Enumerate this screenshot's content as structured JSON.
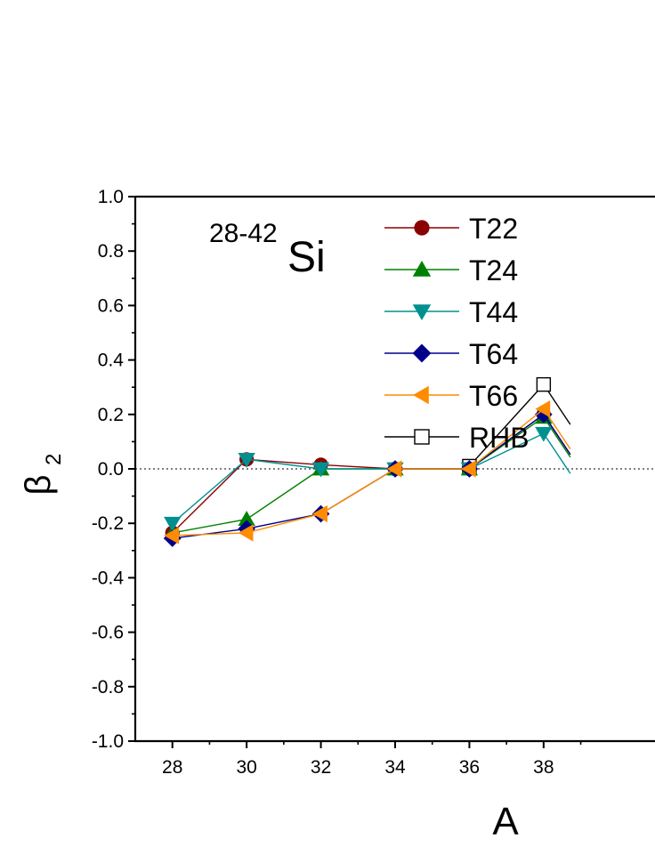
{
  "chart_data": {
    "type": "line",
    "x": [
      28,
      30,
      32,
      34,
      36,
      38
    ],
    "xlabel": "A",
    "ylabel": "β",
    "ylabel_subscript": "2",
    "xlim": [
      27,
      41
    ],
    "ylim": [
      -1.0,
      1.0
    ],
    "xticks": [
      "28",
      "30",
      "32",
      "34",
      "36",
      "38"
    ],
    "yticks": [
      "-1.0",
      "-0.8",
      "-0.6",
      "-0.4",
      "-0.2",
      "0.0",
      "0.2",
      "0.4",
      "0.6",
      "0.8",
      "1.0"
    ],
    "zero_line": "dotted",
    "grid": false,
    "annotation": {
      "superscript": "28-42",
      "text": "Si"
    },
    "legend_position": "top-left",
    "series": [
      {
        "name": "T22",
        "marker": "circle",
        "color": "#8b0000",
        "marker_fill": "#8b0000",
        "values": [
          -0.235,
          0.035,
          0.015,
          0.0,
          0.0,
          0.2
        ]
      },
      {
        "name": "T24",
        "marker": "triangle-up",
        "color": "#008000",
        "marker_fill": "#008000",
        "values": [
          -0.235,
          -0.185,
          0.0,
          0.0,
          0.0,
          0.19
        ]
      },
      {
        "name": "T44",
        "marker": "triangle-down",
        "color": "#009090",
        "marker_fill": "#009090",
        "values": [
          -0.2,
          0.035,
          0.0,
          0.0,
          0.0,
          0.13
        ]
      },
      {
        "name": "T64",
        "marker": "diamond",
        "color": "#00008b",
        "marker_fill": "#00008b",
        "values": [
          -0.255,
          -0.22,
          -0.165,
          0.0,
          0.0,
          0.2
        ]
      },
      {
        "name": "T66",
        "marker": "triangle-left",
        "color": "#ff8c00",
        "marker_fill": "#ff8c00",
        "values": [
          -0.245,
          -0.235,
          -0.165,
          0.0,
          0.0,
          0.22
        ]
      },
      {
        "name": "RHB",
        "marker": "square-open",
        "color": "#000000",
        "marker_fill": "#ffffff",
        "values": [
          null,
          null,
          null,
          null,
          0.01,
          0.31
        ]
      }
    ]
  }
}
